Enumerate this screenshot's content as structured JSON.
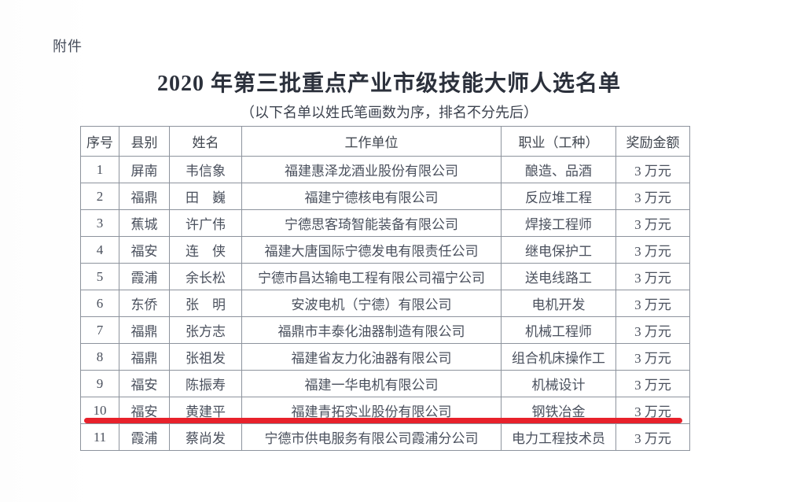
{
  "document": {
    "attachment_label": "附件",
    "title": "2020 年第三批重点产业市级技能大师人选名单",
    "subtitle": "（以下名单以姓氏笔画数为序，排名不分先后）"
  },
  "table": {
    "columns": [
      "序号",
      "县别",
      "姓名",
      "工作单位",
      "职业（工种）",
      "奖励金额"
    ],
    "rows": [
      {
        "no": "1",
        "county": "屏南",
        "name": "韦信象",
        "employer": "福建惠泽龙酒业股份有限公司",
        "occupation": "酿造、品酒",
        "reward": "3 万元"
      },
      {
        "no": "2",
        "county": "福鼎",
        "name": "田　巍",
        "employer": "福建宁德核电有限公司",
        "occupation": "反应堆工程",
        "reward": "3 万元"
      },
      {
        "no": "3",
        "county": "蕉城",
        "name": "许广伟",
        "employer": "宁德思客琦智能装备有限公司",
        "occupation": "焊接工程师",
        "reward": "3 万元"
      },
      {
        "no": "4",
        "county": "福安",
        "name": "连　侠",
        "employer": "福建大唐国际宁德发电有限责任公司",
        "occupation": "继电保护工",
        "reward": "3 万元"
      },
      {
        "no": "5",
        "county": "霞浦",
        "name": "余长松",
        "employer": "宁德市昌达输电工程有限公司福宁公司",
        "occupation": "送电线路工",
        "reward": "3 万元"
      },
      {
        "no": "6",
        "county": "东侨",
        "name": "张　明",
        "employer": "安波电机（宁德）有限公司",
        "occupation": "电机开发",
        "reward": "3 万元"
      },
      {
        "no": "7",
        "county": "福鼎",
        "name": "张方志",
        "employer": "福鼎市丰泰化油器制造有限公司",
        "occupation": "机械工程师",
        "reward": "3 万元"
      },
      {
        "no": "8",
        "county": "福鼎",
        "name": "张祖发",
        "employer": "福建省友力化油器有限公司",
        "occupation": "组合机床操作工",
        "reward": "3 万元"
      },
      {
        "no": "9",
        "county": "福安",
        "name": "陈振寿",
        "employer": "福建一华电机有限公司",
        "occupation": "机械设计",
        "reward": "3 万元"
      },
      {
        "no": "10",
        "county": "福安",
        "name": "黄建平",
        "employer": "福建青拓实业股份有限公司",
        "occupation": "钢铁冶金",
        "reward": "3 万元"
      },
      {
        "no": "11",
        "county": "霞浦",
        "name": "蔡尚发",
        "employer": "宁德市供电服务有限公司霞浦分公司",
        "occupation": "电力工程技术员",
        "reward": "3 万元"
      }
    ],
    "highlight": {
      "type": "red-underline",
      "under_row_no": "10",
      "color": "#e8212b"
    }
  }
}
